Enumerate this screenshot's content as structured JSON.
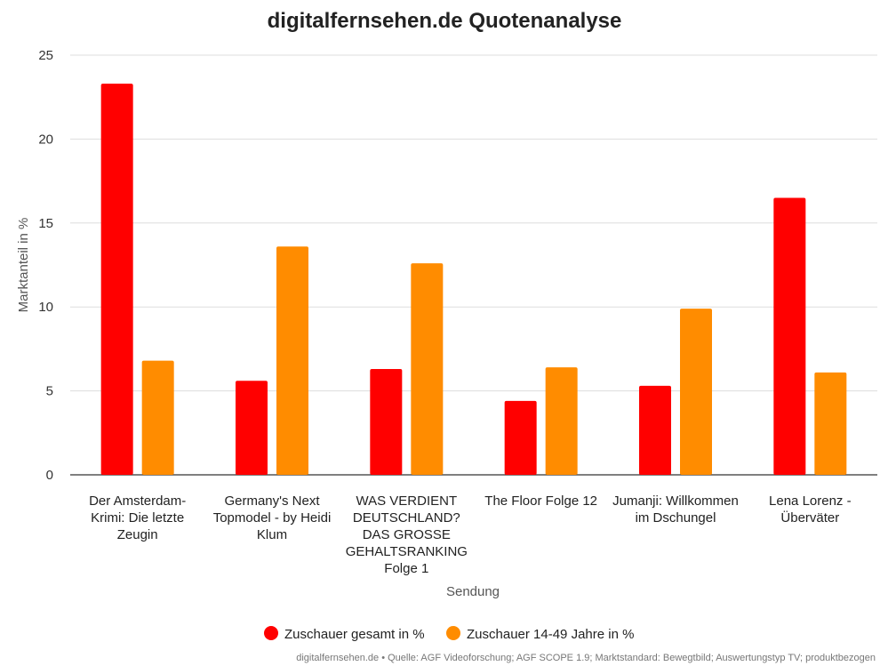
{
  "colors": {
    "series1": "#ff0000",
    "series2": "#ff8c00"
  },
  "footer": {
    "source": "digitalfernsehen.de • Quelle: AGF Videoforschung; AGF SCOPE 1.9; Marktstandard: Bewegtbild; Auswertungstyp TV; produktbezogen"
  },
  "chart_data": {
    "type": "bar",
    "title": "digitalfernsehen.de Quotenanalyse",
    "xlabel": "Sendung",
    "ylabel": "Marktanteil in %",
    "ylim": [
      0,
      25
    ],
    "yticks": [
      0,
      5,
      10,
      15,
      20,
      25
    ],
    "grid": true,
    "legend_position": "bottom",
    "categories": [
      [
        "Der Amsterdam-",
        "Krimi: Die letzte",
        "Zeugin"
      ],
      [
        "Germany's Next",
        "Topmodel - by Heidi",
        "Klum"
      ],
      [
        "WAS VERDIENT",
        "DEUTSCHLAND?",
        "DAS GROSSE",
        "GEHALTSRANKING",
        "Folge 1"
      ],
      [
        "The Floor Folge 12"
      ],
      [
        "Jumanji: Willkommen",
        "im Dschungel"
      ],
      [
        "Lena Lorenz -",
        "Überväter"
      ]
    ],
    "series": [
      {
        "name": "Zuschauer gesamt in %",
        "values": [
          23.3,
          5.6,
          6.3,
          4.4,
          5.3,
          16.5
        ]
      },
      {
        "name": "Zuschauer 14-49 Jahre in %",
        "values": [
          6.8,
          13.6,
          12.6,
          6.4,
          9.9,
          6.1
        ]
      }
    ]
  }
}
